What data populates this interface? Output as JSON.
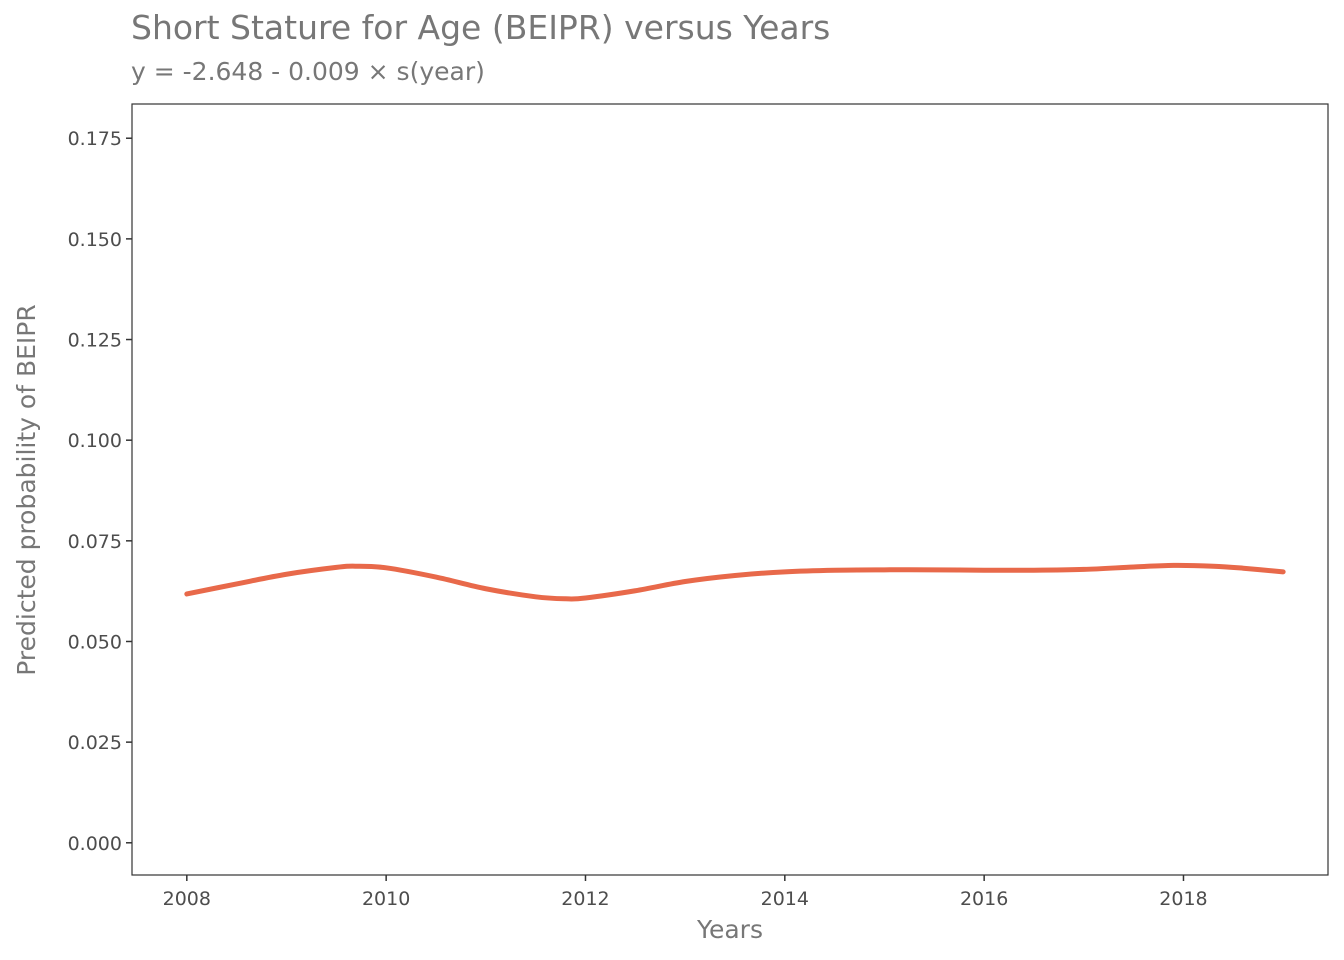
{
  "chart_data": {
    "type": "line",
    "title": "Short Stature for Age (BEIPR) versus Years",
    "subtitle": "y = -2.648 - 0.009 × s(year)",
    "xlabel": "Years",
    "ylabel": "Predicted probability of BEIPR",
    "xlim": [
      2007.45,
      2019.45
    ],
    "ylim": [
      -0.008,
      0.1835
    ],
    "x_ticks": [
      2008,
      2010,
      2012,
      2014,
      2016,
      2018
    ],
    "y_ticks": [
      0.0,
      0.025,
      0.05,
      0.075,
      0.1,
      0.125,
      0.15,
      0.175
    ],
    "y_tick_labels": [
      "0.000",
      "0.025",
      "0.050",
      "0.075",
      "0.100",
      "0.125",
      "0.150",
      "0.175"
    ],
    "grid": false,
    "line_color": "#E8694A",
    "series": [
      {
        "x": [
          2008,
          2008.5,
          2009,
          2009.5,
          2009.7,
          2010,
          2010.5,
          2011,
          2011.5,
          2011.8,
          2012,
          2012.5,
          2013,
          2013.5,
          2014,
          2014.5,
          2015,
          2015.5,
          2016,
          2016.5,
          2017,
          2017.5,
          2017.9,
          2018.3,
          2018.6,
          2019
        ],
        "y": [
          0.0618,
          0.0643,
          0.0667,
          0.0684,
          0.0687,
          0.0683,
          0.066,
          0.0631,
          0.0611,
          0.0606,
          0.0608,
          0.0626,
          0.0649,
          0.0664,
          0.0673,
          0.0677,
          0.0678,
          0.0678,
          0.0677,
          0.0677,
          0.0679,
          0.0685,
          0.0689,
          0.0687,
          0.0682,
          0.0673
        ]
      }
    ]
  }
}
